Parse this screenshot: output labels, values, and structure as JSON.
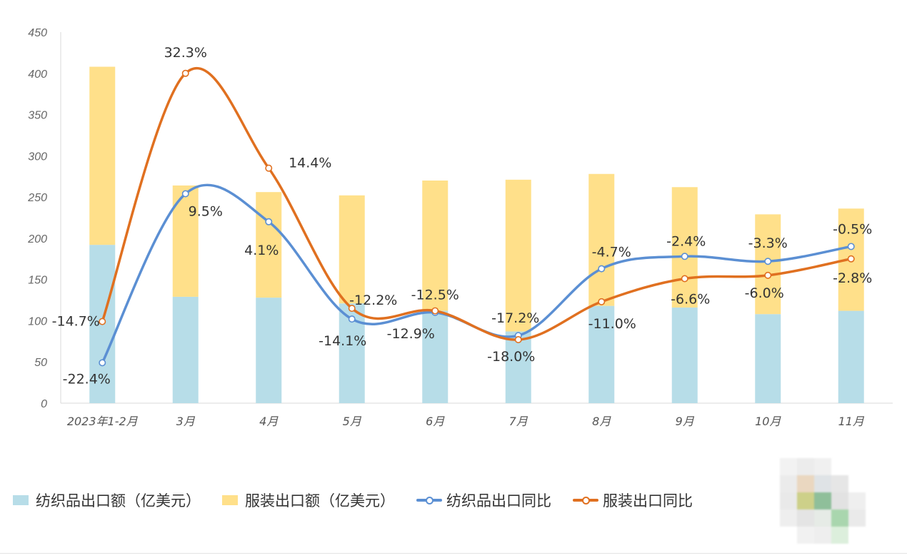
{
  "chart_data": {
    "type": "bar+line",
    "categories": [
      "2023年1-2月",
      "3月",
      "4月",
      "5月",
      "6月",
      "7月",
      "8月",
      "9月",
      "10月",
      "11月"
    ],
    "yticks": [
      "0",
      "50",
      "100",
      "150",
      "200",
      "250",
      "300",
      "350",
      "400",
      "450"
    ],
    "ylim": [
      0,
      450
    ],
    "stacked": true,
    "bar_series": [
      {
        "name": "纺织品出口额（亿美元）",
        "color": "#b7dde8",
        "values": [
          192,
          129,
          128,
          121,
          112,
          87,
          118,
          116,
          108,
          112
        ]
      },
      {
        "name": "服装出口额（亿美元）",
        "color": "#ffe08a",
        "values": [
          216,
          135,
          128,
          131,
          158,
          184,
          160,
          146,
          121,
          124
        ]
      }
    ],
    "line_series": [
      {
        "name": "纺织品出口同比",
        "color": "#5b8fd3",
        "marker_y": [
          49,
          254,
          220,
          102,
          110,
          82,
          163,
          178,
          172,
          190
        ],
        "labels": [
          "-22.4%",
          "9.5%",
          "4.1%",
          "-14.1%",
          "-12.9%",
          "-17.2%",
          "-4.7%",
          "-2.4%",
          "-3.3%",
          "-0.5%"
        ]
      },
      {
        "name": "服装出口同比",
        "color": "#e07020",
        "marker_y": [
          99,
          400,
          285,
          115,
          112,
          77,
          123,
          151,
          155,
          175
        ],
        "labels": [
          "-14.7%",
          "32.3%",
          "14.4%",
          "-12.2%",
          "-12.5%",
          "-18.0%",
          "-11.0%",
          "-6.6%",
          "-6.0%",
          "-2.8%"
        ]
      }
    ],
    "grid": false,
    "legend_position": "bottom-left"
  }
}
